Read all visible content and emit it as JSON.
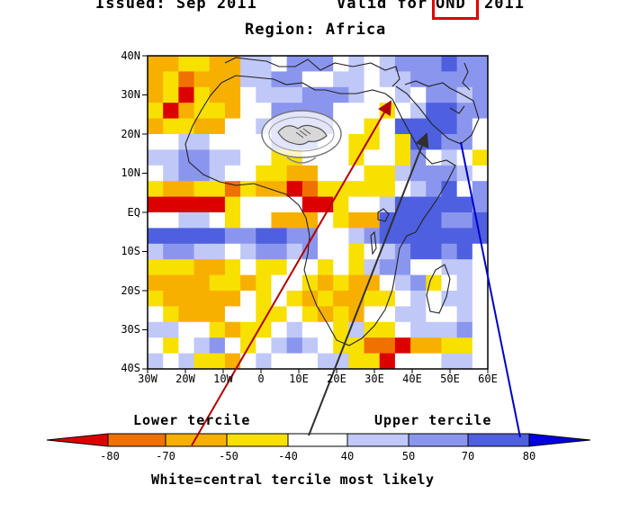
{
  "header": {
    "issued": "Issued: Sep 2011",
    "valid_prefix": "Valid for",
    "season": "OND",
    "year": "2011",
    "region": "Region: Africa"
  },
  "map": {
    "lat_labels": [
      "40N",
      "30N",
      "20N",
      "10N",
      "EQ",
      "10S",
      "20S",
      "30S",
      "40S"
    ],
    "lon_labels": [
      "30W",
      "20W",
      "10W",
      "0",
      "10E",
      "20E",
      "30E",
      "40E",
      "50E",
      "60E"
    ],
    "logo_icon": "handshake-icon"
  },
  "legend": {
    "lower_label": "Lower tercile",
    "upper_label": "Upper tercile",
    "ticks": [
      "-80",
      "-70",
      "-50",
      "-40",
      "40",
      "50",
      "70",
      "80"
    ],
    "colors": [
      "#dd0000",
      "#f07000",
      "#f8b000",
      "#f8e000",
      "#ffffff",
      "#c0c8f8",
      "#8a96ee",
      "#4e60e0",
      "#0000e0"
    ],
    "footnote": "White=central tercile most likely"
  },
  "arrows": [
    {
      "color": "#b00000"
    },
    {
      "color": "#303030"
    },
    {
      "color": "#0000c8"
    }
  ]
}
